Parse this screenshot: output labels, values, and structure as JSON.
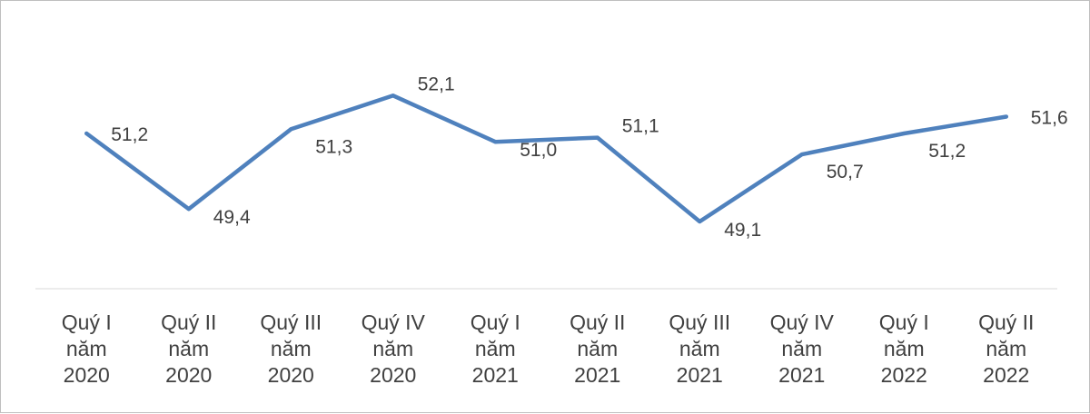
{
  "chart_data": {
    "type": "line",
    "categories": [
      [
        "Quý I",
        "năm",
        "2020"
      ],
      [
        "Quý II",
        "năm",
        "2020"
      ],
      [
        "Quý III",
        "năm",
        "2020"
      ],
      [
        "Quý IV",
        "năm",
        "2020"
      ],
      [
        "Quý I",
        "năm",
        "2021"
      ],
      [
        "Quý II",
        "năm",
        "2021"
      ],
      [
        "Quý III",
        "năm",
        "2021"
      ],
      [
        "Quý IV",
        "năm",
        "2021"
      ],
      [
        "Quý I",
        "năm",
        "2022"
      ],
      [
        "Quý II",
        "năm",
        "2022"
      ]
    ],
    "values": [
      51.2,
      49.4,
      51.3,
      52.1,
      51.0,
      51.1,
      49.1,
      50.7,
      51.2,
      51.6
    ],
    "data_labels": [
      "51,2",
      "49,4",
      "51,3",
      "52,1",
      "51,0",
      "51,1",
      "49,1",
      "50,7",
      "51,2",
      "51,6"
    ],
    "ylim": [
      47.5,
      53.6
    ],
    "line_color": "#4f81bd",
    "grid": false,
    "legend": "none"
  }
}
